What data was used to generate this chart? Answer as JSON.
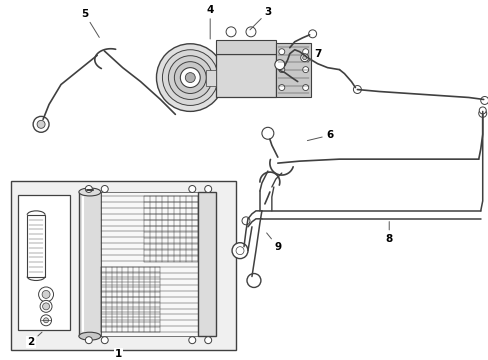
{
  "bg_color": "#ffffff",
  "line_color": "#404040",
  "label_color": "#000000",
  "fig_width": 4.89,
  "fig_height": 3.6,
  "dpi": 100,
  "gray_fill": "#e8e8e8",
  "light_fill": "#f2f2f2"
}
